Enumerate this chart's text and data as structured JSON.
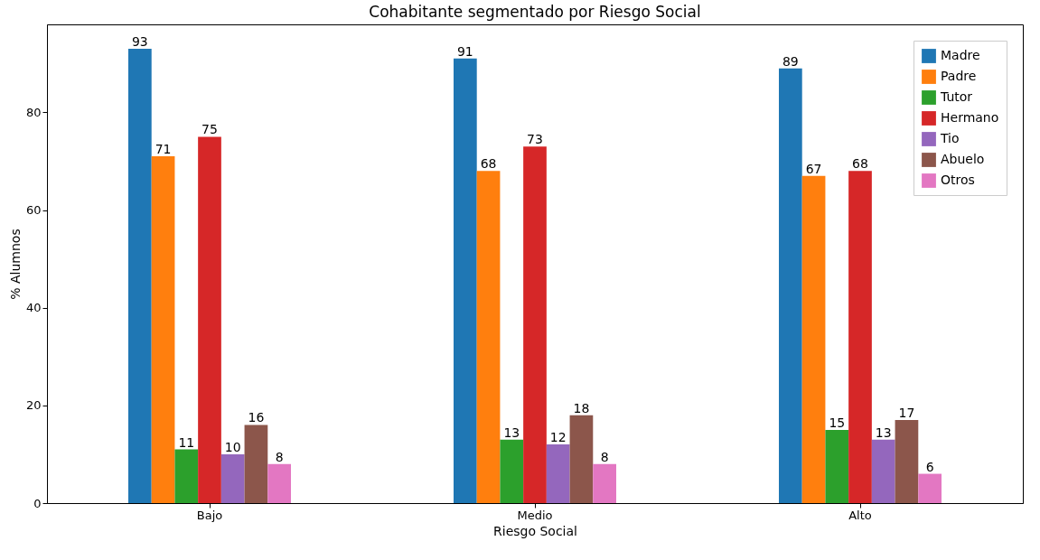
{
  "chart_data": {
    "type": "bar",
    "title": "Cohabitante segmentado por Riesgo Social",
    "xlabel": "Riesgo Social",
    "ylabel": "% Alumnos",
    "categories": [
      "Bajo",
      "Medio",
      "Alto"
    ],
    "series": [
      {
        "name": "Madre",
        "color": "#1f77b4",
        "values": [
          93,
          91,
          89
        ]
      },
      {
        "name": "Padre",
        "color": "#ff7f0e",
        "values": [
          71,
          68,
          67
        ]
      },
      {
        "name": "Tutor",
        "color": "#2ca02c",
        "values": [
          11,
          13,
          15
        ]
      },
      {
        "name": "Hermano",
        "color": "#d62728",
        "values": [
          75,
          73,
          68
        ]
      },
      {
        "name": "Tio",
        "color": "#9467bd",
        "values": [
          10,
          12,
          13
        ]
      },
      {
        "name": "Abuelo",
        "color": "#8c564b",
        "values": [
          16,
          18,
          17
        ]
      },
      {
        "name": "Otros",
        "color": "#e377c2",
        "values": [
          8,
          8,
          6
        ]
      }
    ],
    "ylim": [
      0,
      98
    ],
    "yticks": [
      0,
      20,
      40,
      60,
      80
    ],
    "grid": false,
    "legend": "top right",
    "data_labels": true
  }
}
